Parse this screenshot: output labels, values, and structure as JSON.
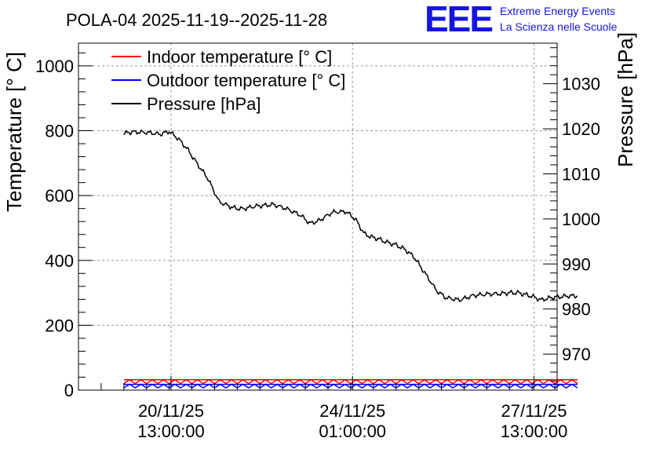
{
  "chart_data": {
    "type": "line",
    "title": "POLA-04 2025-11-19--2025-11-28",
    "ylabel_left": "Temperature [° C]",
    "ylabel_right": "Pressure [hPa]",
    "ylim_left": [
      0,
      1070
    ],
    "ylim_right": [
      962,
      1039
    ],
    "yticks_left": [
      0,
      200,
      400,
      600,
      800,
      1000
    ],
    "yticks_right": [
      970,
      980,
      990,
      1000,
      1010,
      1020,
      1030
    ],
    "xlim_days": [
      0,
      10.55
    ],
    "xticks": [
      {
        "day": 2.04,
        "date": "20/11/25",
        "time": "13:00:00"
      },
      {
        "day": 6.04,
        "date": "24/11/25",
        "time": "01:00:00"
      },
      {
        "day": 10.04,
        "date": "27/11/25",
        "time": "13:00:00"
      }
    ],
    "grid": true,
    "legend": {
      "position": "top-left",
      "entries": [
        {
          "label": "Indoor temperature [° C]",
          "color": "#ff0000"
        },
        {
          "label": "Outdoor temperature [° C]",
          "color": "#0000ff"
        },
        {
          "label": "Pressure [hPa]",
          "color": "#000000"
        }
      ]
    },
    "series": [
      {
        "name": "Pressure [hPa]",
        "axis": "right",
        "color": "#000000",
        "x": [
          1.0,
          1.2,
          1.5,
          1.8,
          2.0,
          2.2,
          2.4,
          2.6,
          2.85,
          3.1,
          3.4,
          3.6,
          3.9,
          4.1,
          4.3,
          4.6,
          4.9,
          5.1,
          5.3,
          5.6,
          5.9,
          6.1,
          6.3,
          6.45,
          6.6,
          6.8,
          7.0,
          7.2,
          7.4,
          7.6,
          7.9,
          8.1,
          8.4,
          8.7,
          9.0,
          9.3,
          9.5,
          9.7,
          9.85,
          10.0,
          10.2,
          10.4,
          10.6,
          10.8,
          11.0
        ],
        "values": [
          1019.0,
          1019.3,
          1019.2,
          1018.8,
          1019.4,
          1017.8,
          1015.5,
          1012.5,
          1009.0,
          1003.8,
          1002.5,
          1002.2,
          1002.8,
          1003.0,
          1003.2,
          1002.2,
          1000.8,
          999.0,
          999.6,
          1001.5,
          1001.6,
          1000.0,
          996.7,
          996.0,
          995.6,
          994.8,
          994.2,
          993.2,
          991.5,
          988.5,
          984.0,
          982.5,
          982.0,
          983.0,
          983.3,
          983.4,
          983.6,
          983.6,
          983.2,
          982.8,
          982.0,
          982.5,
          982.7,
          982.9,
          982.9
        ]
      },
      {
        "name": "Indoor temperature [° C]",
        "axis": "left",
        "color": "#ff0000",
        "x": [
          1.0,
          11.0
        ],
        "values": [
          20,
          32
        ]
      },
      {
        "name": "Outdoor temperature [° C]",
        "axis": "left",
        "color": "#0000ff",
        "x": [
          1.0,
          11.0
        ],
        "values": [
          7,
          18
        ]
      }
    ]
  }
}
